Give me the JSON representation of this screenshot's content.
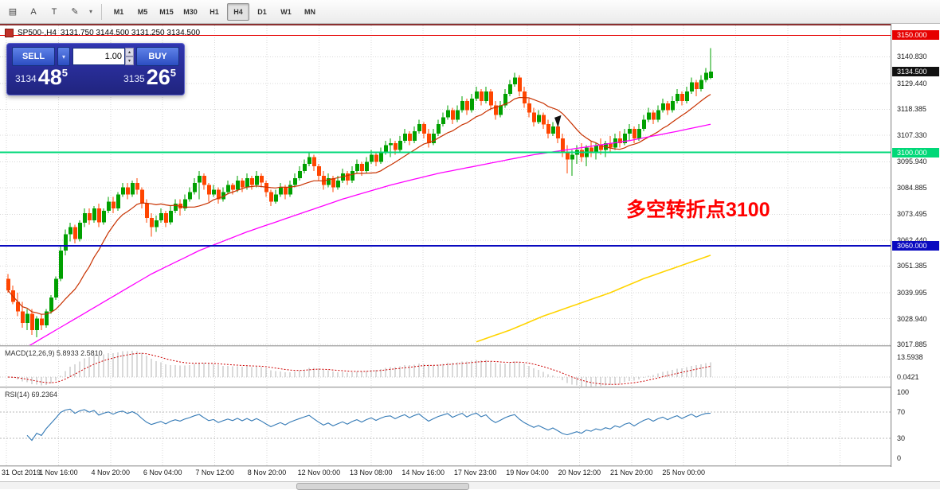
{
  "toolbar": {
    "icons": [
      {
        "name": "chart-grid-icon",
        "glyph": "▤"
      },
      {
        "name": "cursor-tool-icon",
        "glyph": "A"
      },
      {
        "name": "text-tool-icon",
        "glyph": "T"
      },
      {
        "name": "paint-tool-icon",
        "glyph": "✎"
      }
    ],
    "paint_dropdown_glyph": "▾",
    "timeframes": [
      "M1",
      "M5",
      "M15",
      "M30",
      "H1",
      "H4",
      "D1",
      "W1",
      "MN"
    ],
    "active_timeframe": "H4"
  },
  "chart_header": {
    "symbol": "SP500-,H4",
    "ohlc": "3131.750 3144.500 3131.250 3134.500"
  },
  "trade_panel": {
    "sell_label": "SELL",
    "buy_label": "BUY",
    "lot_value": "1.00",
    "dropdown_glyph": "▾",
    "spin_up_glyph": "▴",
    "spin_down_glyph": "▾",
    "sell_price_prefix": "3134",
    "sell_price_main": "48",
    "sell_price_sup": "5",
    "buy_price_prefix": "3135",
    "buy_price_main": "26",
    "buy_price_sup": "5"
  },
  "annotation": {
    "text": "多空转折点3100",
    "color": "#ff0000"
  },
  "price_axis": {
    "labels": [
      {
        "text": "3140.830",
        "price": 3140.83
      },
      {
        "text": "3129.440",
        "price": 3129.44
      },
      {
        "text": "3118.385",
        "price": 3118.385
      },
      {
        "text": "3107.330",
        "price": 3107.33
      },
      {
        "text": "3095.940",
        "price": 3095.94
      },
      {
        "text": "3084.885",
        "price": 3084.885
      },
      {
        "text": "3073.495",
        "price": 3073.495
      },
      {
        "text": "3062.440",
        "price": 3062.44
      },
      {
        "text": "3051.385",
        "price": 3051.385
      },
      {
        "text": "3039.995",
        "price": 3039.995
      },
      {
        "text": "3028.940",
        "price": 3028.94
      },
      {
        "text": "3017.885",
        "price": 3017.885
      }
    ],
    "badges": [
      {
        "text": "3150.000",
        "price": 3150,
        "bg": "#e60000",
        "fg": "#ffffff"
      },
      {
        "text": "3134.500",
        "price": 3134.5,
        "bg": "#111111",
        "fg": "#ffffff"
      },
      {
        "text": "3100.000",
        "price": 3100,
        "bg": "#00d878",
        "fg": "#ffffff"
      },
      {
        "text": "3060.000",
        "price": 3060,
        "bg": "#0a0ac0",
        "fg": "#ffffff"
      }
    ]
  },
  "macd": {
    "title": "MACD(12,26,9)",
    "values": "5.8933 2.5810",
    "axis_labels": [
      {
        "text": "13.5938",
        "dy": 8
      },
      {
        "text": "0.0421",
        "dy": 33
      }
    ]
  },
  "rsi": {
    "title": "RSI(14) 69.2364",
    "levels": [
      70,
      30
    ],
    "axis_labels": [
      {
        "text": "100",
        "value": 100
      },
      {
        "text": "70",
        "value": 70
      },
      {
        "text": "30",
        "value": 30
      },
      {
        "text": "0",
        "value": 0
      }
    ]
  },
  "chart_data": {
    "type": "candlestick",
    "symbol": "SP500-",
    "timeframe": "H4",
    "last_candle": {
      "open": 3131.75,
      "high": 3144.5,
      "low": 3131.25,
      "close": 3134.5
    },
    "y_range": [
      3017.5,
      3150.5
    ],
    "levels": [
      {
        "price": 3150,
        "color": "#e60000",
        "width": 1.2,
        "label": "3150.000"
      },
      {
        "price": 3100,
        "color": "#00d878",
        "width": 2,
        "label": "3100.000"
      },
      {
        "price": 3060,
        "color": "#0a0ac0",
        "width": 2,
        "label": "3060.000"
      }
    ],
    "time_labels": [
      "31 Oct 2019",
      "1 Nov 16:00",
      "4 Nov 20:00",
      "6 Nov 04:00",
      "7 Nov 12:00",
      "8 Nov 20:00",
      "12 Nov 00:00",
      "13 Nov 08:00",
      "14 Nov 16:00",
      "17 Nov 23:00",
      "19 Nov 04:00",
      "20 Nov 12:00",
      "21 Nov 20:00",
      "25 Nov 00:00"
    ],
    "candles": [
      [
        3046,
        3048,
        3040,
        3041
      ],
      [
        3041,
        3043,
        3035,
        3036
      ],
      [
        3036,
        3040,
        3030,
        3032
      ],
      [
        3032,
        3036,
        3025,
        3027
      ],
      [
        3027,
        3033,
        3024,
        3031
      ],
      [
        3031,
        3033,
        3022,
        3024
      ],
      [
        3024,
        3030,
        3021,
        3029
      ],
      [
        3029,
        3031,
        3024,
        3026
      ],
      [
        3026,
        3033,
        3025,
        3032
      ],
      [
        3032,
        3039,
        3031,
        3038
      ],
      [
        3038,
        3047,
        3037,
        3046
      ],
      [
        3046,
        3060,
        3045,
        3058
      ],
      [
        3058,
        3067,
        3056,
        3065
      ],
      [
        3065,
        3070,
        3062,
        3068
      ],
      [
        3068,
        3069,
        3061,
        3063
      ],
      [
        3063,
        3071,
        3062,
        3070
      ],
      [
        3070,
        3076,
        3068,
        3074
      ],
      [
        3074,
        3076,
        3069,
        3071
      ],
      [
        3071,
        3077,
        3070,
        3076
      ],
      [
        3076,
        3078,
        3068,
        3070
      ],
      [
        3070,
        3076,
        3069,
        3075
      ],
      [
        3075,
        3081,
        3074,
        3079
      ],
      [
        3079,
        3081,
        3074,
        3076
      ],
      [
        3076,
        3083,
        3075,
        3082
      ],
      [
        3082,
        3087,
        3081,
        3085
      ],
      [
        3085,
        3087,
        3080,
        3082
      ],
      [
        3082,
        3088,
        3081,
        3087
      ],
      [
        3087,
        3089,
        3082,
        3084
      ],
      [
        3084,
        3085,
        3076,
        3078
      ],
      [
        3078,
        3080,
        3070,
        3072
      ],
      [
        3072,
        3074,
        3064,
        3068
      ],
      [
        3068,
        3073,
        3066,
        3071
      ],
      [
        3071,
        3076,
        3070,
        3074
      ],
      [
        3074,
        3075,
        3068,
        3070
      ],
      [
        3070,
        3077,
        3069,
        3075
      ],
      [
        3075,
        3080,
        3074,
        3078
      ],
      [
        3078,
        3080,
        3073,
        3076
      ],
      [
        3076,
        3082,
        3075,
        3080
      ],
      [
        3080,
        3085,
        3079,
        3083
      ],
      [
        3083,
        3089,
        3082,
        3087
      ],
      [
        3087,
        3092,
        3080,
        3090
      ],
      [
        3090,
        3091,
        3084,
        3086
      ],
      [
        3086,
        3087,
        3079,
        3082
      ],
      [
        3082,
        3086,
        3081,
        3084
      ],
      [
        3084,
        3085,
        3078,
        3080
      ],
      [
        3080,
        3085,
        3079,
        3083
      ],
      [
        3083,
        3088,
        3082,
        3086
      ],
      [
        3086,
        3087,
        3082,
        3084
      ],
      [
        3084,
        3090,
        3083,
        3088
      ],
      [
        3088,
        3089,
        3083,
        3085
      ],
      [
        3085,
        3091,
        3084,
        3089
      ],
      [
        3089,
        3090,
        3084,
        3086
      ],
      [
        3086,
        3092,
        3085,
        3090
      ],
      [
        3090,
        3091,
        3085,
        3087
      ],
      [
        3087,
        3088,
        3081,
        3083
      ],
      [
        3083,
        3084,
        3077,
        3079
      ],
      [
        3079,
        3084,
        3078,
        3082
      ],
      [
        3082,
        3087,
        3081,
        3085
      ],
      [
        3085,
        3086,
        3080,
        3082
      ],
      [
        3082,
        3088,
        3081,
        3086
      ],
      [
        3086,
        3091,
        3085,
        3089
      ],
      [
        3089,
        3094,
        3088,
        3092
      ],
      [
        3092,
        3097,
        3091,
        3095
      ],
      [
        3095,
        3100,
        3094,
        3098
      ],
      [
        3098,
        3099,
        3092,
        3094
      ],
      [
        3094,
        3095,
        3088,
        3090
      ],
      [
        3090,
        3092,
        3084,
        3086
      ],
      [
        3086,
        3091,
        3085,
        3089
      ],
      [
        3089,
        3090,
        3083,
        3085
      ],
      [
        3085,
        3090,
        3084,
        3088
      ],
      [
        3088,
        3093,
        3087,
        3091
      ],
      [
        3091,
        3092,
        3086,
        3088
      ],
      [
        3088,
        3094,
        3087,
        3092
      ],
      [
        3092,
        3097,
        3091,
        3095
      ],
      [
        3095,
        3096,
        3090,
        3092
      ],
      [
        3092,
        3098,
        3091,
        3096
      ],
      [
        3096,
        3101,
        3095,
        3099
      ],
      [
        3099,
        3100,
        3094,
        3096
      ],
      [
        3096,
        3102,
        3095,
        3100
      ],
      [
        3100,
        3105,
        3099,
        3103
      ],
      [
        3103,
        3106,
        3098,
        3104
      ],
      [
        3104,
        3105,
        3099,
        3101
      ],
      [
        3101,
        3107,
        3100,
        3105
      ],
      [
        3105,
        3110,
        3104,
        3108
      ],
      [
        3108,
        3109,
        3103,
        3105
      ],
      [
        3105,
        3111,
        3104,
        3109
      ],
      [
        3109,
        3114,
        3108,
        3112
      ],
      [
        3112,
        3113,
        3106,
        3108
      ],
      [
        3108,
        3110,
        3102,
        3104
      ],
      [
        3104,
        3110,
        3103,
        3108
      ],
      [
        3108,
        3114,
        3107,
        3112
      ],
      [
        3112,
        3117,
        3111,
        3115
      ],
      [
        3115,
        3120,
        3114,
        3118
      ],
      [
        3118,
        3119,
        3112,
        3114
      ],
      [
        3114,
        3120,
        3113,
        3118
      ],
      [
        3118,
        3124,
        3117,
        3122
      ],
      [
        3122,
        3123,
        3116,
        3118
      ],
      [
        3118,
        3125,
        3117,
        3123
      ],
      [
        3123,
        3128,
        3122,
        3126
      ],
      [
        3126,
        3127,
        3120,
        3122
      ],
      [
        3122,
        3128,
        3121,
        3126
      ],
      [
        3126,
        3127,
        3118,
        3120
      ],
      [
        3120,
        3122,
        3114,
        3116
      ],
      [
        3116,
        3122,
        3115,
        3120
      ],
      [
        3120,
        3127,
        3119,
        3125
      ],
      [
        3125,
        3131,
        3124,
        3129
      ],
      [
        3129,
        3134,
        3128,
        3132
      ],
      [
        3132,
        3133,
        3124,
        3126
      ],
      [
        3126,
        3128,
        3119,
        3121
      ],
      [
        3121,
        3123,
        3115,
        3117
      ],
      [
        3117,
        3119,
        3111,
        3113
      ],
      [
        3113,
        3118,
        3112,
        3116
      ],
      [
        3116,
        3117,
        3110,
        3112
      ],
      [
        3112,
        3114,
        3106,
        3108
      ],
      [
        3108,
        3113,
        3107,
        3111
      ],
      [
        3111,
        3112,
        3104,
        3106
      ],
      [
        3106,
        3108,
        3098,
        3100
      ],
      [
        3100,
        3103,
        3091,
        3097
      ],
      [
        3097,
        3101,
        3090,
        3099
      ],
      [
        3099,
        3103,
        3095,
        3101
      ],
      [
        3101,
        3104,
        3096,
        3098
      ],
      [
        3098,
        3103,
        3094,
        3102
      ],
      [
        3102,
        3105,
        3098,
        3100
      ],
      [
        3100,
        3104,
        3097,
        3103
      ],
      [
        3103,
        3106,
        3099,
        3101
      ],
      [
        3101,
        3105,
        3098,
        3104
      ],
      [
        3104,
        3107,
        3100,
        3102
      ],
      [
        3102,
        3108,
        3101,
        3106
      ],
      [
        3106,
        3109,
        3102,
        3104
      ],
      [
        3104,
        3110,
        3103,
        3108
      ],
      [
        3108,
        3112,
        3105,
        3110
      ],
      [
        3110,
        3111,
        3104,
        3106
      ],
      [
        3106,
        3112,
        3105,
        3110
      ],
      [
        3110,
        3116,
        3109,
        3114
      ],
      [
        3114,
        3119,
        3113,
        3117
      ],
      [
        3117,
        3118,
        3112,
        3114
      ],
      [
        3114,
        3120,
        3113,
        3118
      ],
      [
        3118,
        3123,
        3117,
        3121
      ],
      [
        3121,
        3122,
        3116,
        3118
      ],
      [
        3118,
        3124,
        3117,
        3122
      ],
      [
        3122,
        3127,
        3121,
        3125
      ],
      [
        3125,
        3126,
        3120,
        3122
      ],
      [
        3122,
        3128,
        3121,
        3126
      ],
      [
        3126,
        3132,
        3125,
        3130
      ],
      [
        3130,
        3131,
        3124,
        3127
      ],
      [
        3127,
        3133,
        3126,
        3131
      ],
      [
        3131,
        3136,
        3130,
        3134
      ],
      [
        3131.75,
        3144.5,
        3131.25,
        3134.5
      ]
    ],
    "ma_mid_points": [
      [
        0,
        3012
      ],
      [
        10,
        3024
      ],
      [
        20,
        3036
      ],
      [
        30,
        3048
      ],
      [
        40,
        3058
      ],
      [
        50,
        3066
      ],
      [
        60,
        3073
      ],
      [
        70,
        3080
      ],
      [
        80,
        3086
      ],
      [
        90,
        3091
      ],
      [
        100,
        3095
      ],
      [
        110,
        3099
      ],
      [
        120,
        3102
      ],
      [
        130,
        3105
      ],
      [
        140,
        3109
      ],
      [
        147,
        3112
      ]
    ],
    "ma_slow_points": [
      [
        98,
        3019
      ],
      [
        105,
        3024
      ],
      [
        112,
        3030
      ],
      [
        119,
        3035
      ],
      [
        126,
        3040
      ],
      [
        133,
        3046
      ],
      [
        140,
        3051
      ],
      [
        147,
        3056
      ]
    ],
    "indicators": {
      "ma_fast_period": 13,
      "macd": [
        12,
        26,
        9
      ],
      "rsi_period": 14
    },
    "colors": {
      "up": "#00a000",
      "down": "#ff4500",
      "ma_fast": "#c83200",
      "ma_mid": "#ff00ff",
      "ma_slow": "#ffd400",
      "macd_bar": "#b4b4b4",
      "macd_signal": "#cc0000",
      "rsi": "#3379b5",
      "grid": "#d8d8d8"
    }
  }
}
